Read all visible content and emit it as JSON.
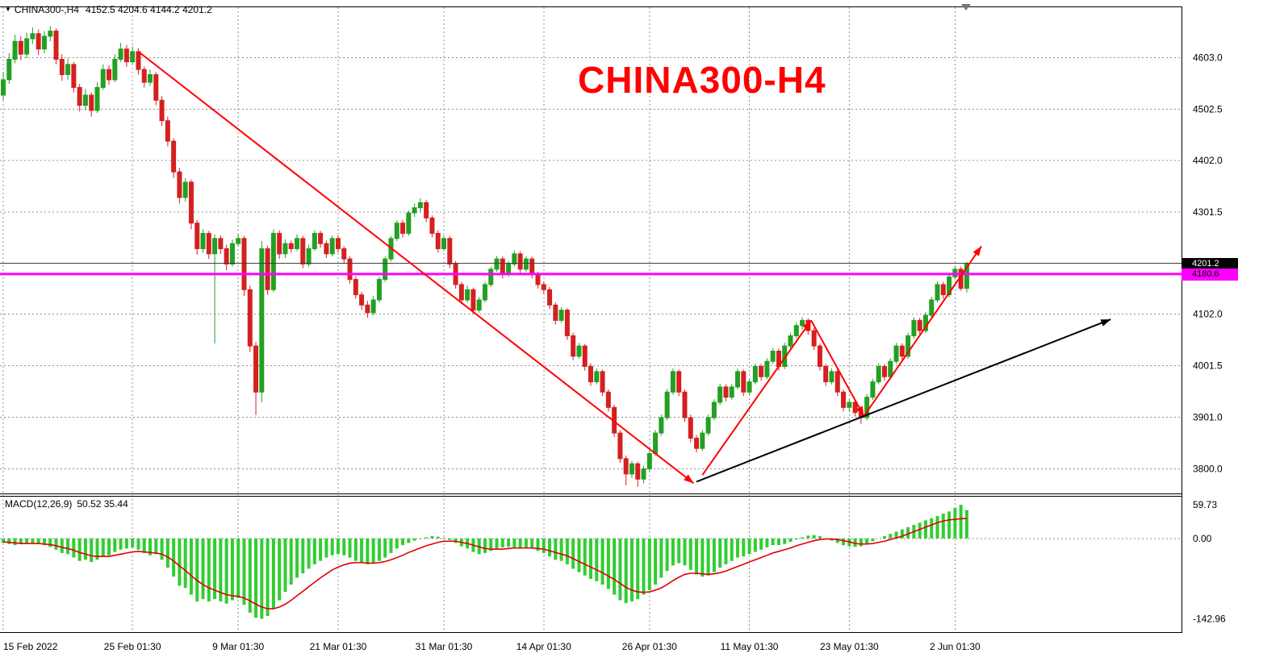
{
  "title_bar": {
    "symbol_period": "CHINA300-,H4",
    "ohlc": "4152.5 4204.6 4144.2 4201.2"
  },
  "watermark": "CHINA300-H4",
  "price_axis": {
    "ticks": [
      4603.0,
      4502.5,
      4402.0,
      4301.5,
      4102.0,
      4001.5,
      3901.0,
      3800.0
    ],
    "current_price": "4201.2",
    "current_price_value": 4201.2,
    "level_price": "4180.6",
    "level_price_value": 4180.6
  },
  "time_axis": {
    "labels": [
      {
        "text": "15 Feb 2022",
        "i": 0
      },
      {
        "text": "25 Feb 01:30",
        "i": 22
      },
      {
        "text": "9 Mar 01:30",
        "i": 40
      },
      {
        "text": "21 Mar 01:30",
        "i": 57
      },
      {
        "text": "31 Mar 01:30",
        "i": 75
      },
      {
        "text": "14 Apr 01:30",
        "i": 92
      },
      {
        "text": "26 Apr 01:30",
        "i": 110
      },
      {
        "text": "11 May 01:30",
        "i": 127
      },
      {
        "text": "23 May 01:30",
        "i": 144
      },
      {
        "text": "2 Jun 01:30",
        "i": 162
      }
    ]
  },
  "macd_panel": {
    "label": "MACD(12,26,9)",
    "values": "50.52 35.44",
    "axis_ticks": [
      59.73,
      0.0,
      -142.96
    ]
  },
  "chart_data": {
    "type": "candlestick",
    "title": "CHINA300-H4",
    "symbol": "CHINA300",
    "timeframe": "H4",
    "ylim": [
      3752,
      4700
    ],
    "macd_ylim": [
      -165.2,
      74.2
    ],
    "grid": true,
    "colors": {
      "up": "#22a022",
      "down": "#d42020",
      "macd_hist": "#32cd32",
      "macd_signal": "#e00000",
      "grid": "#909090",
      "level_magenta": "#ff00ff",
      "current_price_line": "#404040",
      "trend_red": "#ff0000",
      "trend_black": "#000000"
    },
    "candles": [
      [
        4530,
        4575,
        4520,
        4560
      ],
      [
        4560,
        4612,
        4552,
        4600
      ],
      [
        4600,
        4648,
        4592,
        4635
      ],
      [
        4635,
        4645,
        4598,
        4610
      ],
      [
        4610,
        4652,
        4602,
        4640
      ],
      [
        4640,
        4662,
        4630,
        4650
      ],
      [
        4650,
        4658,
        4608,
        4620
      ],
      [
        4620,
        4655,
        4612,
        4645
      ],
      [
        4645,
        4665,
        4635,
        4655
      ],
      [
        4655,
        4660,
        4590,
        4600
      ],
      [
        4600,
        4610,
        4558,
        4570
      ],
      [
        4570,
        4602,
        4560,
        4590
      ],
      [
        4590,
        4595,
        4535,
        4545
      ],
      [
        4545,
        4552,
        4498,
        4510
      ],
      [
        4510,
        4542,
        4500,
        4530
      ],
      [
        4530,
        4535,
        4488,
        4500
      ],
      [
        4500,
        4555,
        4495,
        4545
      ],
      [
        4545,
        4590,
        4540,
        4580
      ],
      [
        4580,
        4588,
        4550,
        4560
      ],
      [
        4560,
        4610,
        4555,
        4600
      ],
      [
        4600,
        4632,
        4595,
        4620
      ],
      [
        4620,
        4628,
        4585,
        4595
      ],
      [
        4595,
        4625,
        4590,
        4615
      ],
      [
        4615,
        4622,
        4570,
        4580
      ],
      [
        4580,
        4586,
        4545,
        4555
      ],
      [
        4555,
        4580,
        4548,
        4570
      ],
      [
        4570,
        4575,
        4510,
        4520
      ],
      [
        4520,
        4528,
        4470,
        4480
      ],
      [
        4480,
        4488,
        4430,
        4440
      ],
      [
        4440,
        4446,
        4368,
        4380
      ],
      [
        4380,
        4388,
        4318,
        4330
      ],
      [
        4330,
        4368,
        4322,
        4360
      ],
      [
        4360,
        4365,
        4268,
        4280
      ],
      [
        4280,
        4286,
        4218,
        4230
      ],
      [
        4230,
        4268,
        4222,
        4260
      ],
      [
        4260,
        4265,
        4210,
        4220
      ],
      [
        4220,
        4258,
        4045,
        4250
      ],
      [
        4250,
        4256,
        4220,
        4230
      ],
      [
        4230,
        4238,
        4188,
        4200
      ],
      [
        4200,
        4248,
        4195,
        4240
      ],
      [
        4240,
        4258,
        4235,
        4250
      ],
      [
        4250,
        4255,
        4138,
        4150
      ],
      [
        4150,
        4158,
        4028,
        4040
      ],
      [
        4040,
        4048,
        3905,
        3950
      ],
      [
        3950,
        4245,
        3930,
        4230
      ],
      [
        4230,
        4236,
        4140,
        4150
      ],
      [
        4150,
        4268,
        4145,
        4260
      ],
      [
        4260,
        4266,
        4210,
        4220
      ],
      [
        4220,
        4248,
        4212,
        4240
      ],
      [
        4240,
        4246,
        4222,
        4230
      ],
      [
        4230,
        4258,
        4225,
        4250
      ],
      [
        4250,
        4255,
        4192,
        4200
      ],
      [
        4200,
        4238,
        4195,
        4230
      ],
      [
        4230,
        4266,
        4226,
        4260
      ],
      [
        4260,
        4265,
        4232,
        4240
      ],
      [
        4240,
        4246,
        4212,
        4220
      ],
      [
        4220,
        4256,
        4215,
        4250
      ],
      [
        4250,
        4256,
        4222,
        4230
      ],
      [
        4230,
        4235,
        4200,
        4210
      ],
      [
        4210,
        4215,
        4162,
        4170
      ],
      [
        4170,
        4176,
        4132,
        4140
      ],
      [
        4140,
        4146,
        4110,
        4120
      ],
      [
        4120,
        4128,
        4095,
        4105
      ],
      [
        4105,
        4138,
        4100,
        4130
      ],
      [
        4130,
        4175,
        4125,
        4170
      ],
      [
        4170,
        4215,
        4165,
        4210
      ],
      [
        4210,
        4255,
        4205,
        4250
      ],
      [
        4250,
        4285,
        4245,
        4280
      ],
      [
        4280,
        4286,
        4252,
        4260
      ],
      [
        4260,
        4305,
        4255,
        4300
      ],
      [
        4300,
        4318,
        4292,
        4310
      ],
      [
        4310,
        4328,
        4302,
        4320
      ],
      [
        4320,
        4325,
        4282,
        4290
      ],
      [
        4290,
        4295,
        4252,
        4260
      ],
      [
        4260,
        4266,
        4222,
        4230
      ],
      [
        4230,
        4256,
        4225,
        4250
      ],
      [
        4250,
        4255,
        4192,
        4200
      ],
      [
        4200,
        4206,
        4152,
        4160
      ],
      [
        4160,
        4165,
        4122,
        4130
      ],
      [
        4130,
        4158,
        4125,
        4150
      ],
      [
        4150,
        4154,
        4102,
        4110
      ],
      [
        4110,
        4136,
        4105,
        4130
      ],
      [
        4130,
        4165,
        4125,
        4160
      ],
      [
        4160,
        4195,
        4155,
        4190
      ],
      [
        4190,
        4216,
        4185,
        4210
      ],
      [
        4210,
        4215,
        4172,
        4180
      ],
      [
        4180,
        4206,
        4175,
        4200
      ],
      [
        4200,
        4226,
        4195,
        4220
      ],
      [
        4220,
        4225,
        4182,
        4190
      ],
      [
        4190,
        4215,
        4185,
        4210
      ],
      [
        4210,
        4214,
        4172,
        4180
      ],
      [
        4180,
        4185,
        4152,
        4160
      ],
      [
        4160,
        4166,
        4142,
        4150
      ],
      [
        4150,
        4155,
        4112,
        4120
      ],
      [
        4120,
        4125,
        4082,
        4090
      ],
      [
        4090,
        4116,
        4085,
        4110
      ],
      [
        4110,
        4114,
        4052,
        4060
      ],
      [
        4060,
        4066,
        4012,
        4020
      ],
      [
        4020,
        4046,
        4015,
        4040
      ],
      [
        4040,
        4044,
        3992,
        4000
      ],
      [
        4000,
        4006,
        3962,
        3970
      ],
      [
        3970,
        3996,
        3965,
        3990
      ],
      [
        3990,
        3994,
        3942,
        3950
      ],
      [
        3950,
        3955,
        3912,
        3920
      ],
      [
        3920,
        3925,
        3862,
        3870
      ],
      [
        3870,
        3876,
        3812,
        3820
      ],
      [
        3820,
        3826,
        3768,
        3790
      ],
      [
        3790,
        3816,
        3782,
        3810
      ],
      [
        3810,
        3814,
        3765,
        3780
      ],
      [
        3780,
        3806,
        3772,
        3800
      ],
      [
        3800,
        3836,
        3795,
        3830
      ],
      [
        3830,
        3876,
        3825,
        3870
      ],
      [
        3870,
        3906,
        3865,
        3900
      ],
      [
        3900,
        3956,
        3895,
        3950
      ],
      [
        3950,
        3996,
        3945,
        3990
      ],
      [
        3990,
        3994,
        3942,
        3950
      ],
      [
        3950,
        3955,
        3892,
        3900
      ],
      [
        3900,
        3906,
        3852,
        3860
      ],
      [
        3860,
        3866,
        3832,
        3840
      ],
      [
        3840,
        3876,
        3835,
        3870
      ],
      [
        3870,
        3906,
        3865,
        3900
      ],
      [
        3900,
        3936,
        3895,
        3930
      ],
      [
        3930,
        3966,
        3925,
        3960
      ],
      [
        3960,
        3965,
        3932,
        3940
      ],
      [
        3940,
        3966,
        3935,
        3960
      ],
      [
        3960,
        3996,
        3955,
        3990
      ],
      [
        3990,
        3994,
        3942,
        3950
      ],
      [
        3950,
        3976,
        3945,
        3970
      ],
      [
        3970,
        4006,
        3965,
        4000
      ],
      [
        4000,
        4005,
        3972,
        3980
      ],
      [
        3980,
        4016,
        3975,
        4010
      ],
      [
        4010,
        4036,
        4005,
        4030
      ],
      [
        4030,
        4035,
        3992,
        4000
      ],
      [
        4000,
        4046,
        3995,
        4040
      ],
      [
        4040,
        4066,
        4035,
        4060
      ],
      [
        4060,
        4086,
        4055,
        4080
      ],
      [
        4080,
        4096,
        4072,
        4090
      ],
      [
        4090,
        4094,
        4062,
        4070
      ],
      [
        4070,
        4075,
        4032,
        4040
      ],
      [
        4040,
        4045,
        3992,
        4000
      ],
      [
        4000,
        4005,
        3962,
        3970
      ],
      [
        3970,
        3996,
        3965,
        3990
      ],
      [
        3990,
        3994,
        3942,
        3950
      ],
      [
        3950,
        3955,
        3912,
        3920
      ],
      [
        3920,
        3936,
        3912,
        3930
      ],
      [
        3930,
        3935,
        3902,
        3910
      ],
      [
        3910,
        3915,
        3888,
        3900
      ],
      [
        3900,
        3946,
        3895,
        3940
      ],
      [
        3940,
        3976,
        3935,
        3970
      ],
      [
        3970,
        4006,
        3965,
        4000
      ],
      [
        4000,
        4005,
        3972,
        3980
      ],
      [
        3980,
        4016,
        3975,
        4010
      ],
      [
        4010,
        4046,
        4005,
        4040
      ],
      [
        4040,
        4045,
        4012,
        4020
      ],
      [
        4020,
        4066,
        4015,
        4060
      ],
      [
        4060,
        4096,
        4055,
        4090
      ],
      [
        4090,
        4095,
        4062,
        4070
      ],
      [
        4070,
        4106,
        4065,
        4100
      ],
      [
        4100,
        4136,
        4095,
        4130
      ],
      [
        4130,
        4166,
        4125,
        4160
      ],
      [
        4160,
        4165,
        4132,
        4140
      ],
      [
        4140,
        4181,
        4135,
        4175
      ],
      [
        4175,
        4196,
        4170,
        4190
      ],
      [
        4190,
        4195,
        4148,
        4152.5
      ],
      [
        4152.5,
        4204.6,
        4144.2,
        4201.2
      ]
    ],
    "macd": {
      "histogram": [
        -8,
        -10,
        -12,
        -10,
        -9,
        -8,
        -10,
        -12,
        -15,
        -20,
        -26,
        -28,
        -34,
        -40,
        -38,
        -42,
        -38,
        -32,
        -30,
        -24,
        -20,
        -18,
        -16,
        -20,
        -26,
        -30,
        -28,
        -38,
        -52,
        -68,
        -84,
        -88,
        -100,
        -112,
        -108,
        -112,
        -108,
        -112,
        -116,
        -110,
        -106,
        -118,
        -132,
        -141,
        -142.96,
        -138,
        -126,
        -110,
        -95,
        -82,
        -70,
        -62,
        -54,
        -46,
        -40,
        -34,
        -30,
        -28,
        -30,
        -34,
        -40,
        -44,
        -46,
        -44,
        -40,
        -34,
        -26,
        -18,
        -12,
        -8,
        -4,
        -1,
        2,
        4,
        3,
        1,
        -3,
        -8,
        -14,
        -18,
        -24,
        -28,
        -26,
        -22,
        -18,
        -16,
        -15,
        -16,
        -18,
        -16,
        -18,
        -22,
        -26,
        -32,
        -38,
        -40,
        -46,
        -54,
        -60,
        -66,
        -72,
        -76,
        -82,
        -90,
        -100,
        -110,
        -115,
        -112,
        -108,
        -100,
        -92,
        -82,
        -70,
        -58,
        -48,
        -44,
        -48,
        -56,
        -64,
        -68,
        -66,
        -60,
        -52,
        -46,
        -40,
        -34,
        -32,
        -28,
        -24,
        -20,
        -16,
        -12,
        -12,
        -10,
        -6,
        -2,
        2,
        5,
        6,
        4,
        0,
        -4,
        -8,
        -12,
        -14,
        -15,
        -14,
        -10,
        -5,
        0,
        4,
        8,
        12,
        16,
        20,
        24,
        28,
        32,
        36,
        40,
        44,
        48,
        54,
        59.73,
        50.52
      ],
      "signal": [
        -6,
        -7,
        -8,
        -9,
        -9,
        -9,
        -9,
        -10,
        -11,
        -13,
        -16,
        -18,
        -21,
        -25,
        -28,
        -31,
        -32,
        -32,
        -32,
        -30,
        -28,
        -26,
        -24,
        -23,
        -24,
        -25,
        -26,
        -28,
        -33,
        -40,
        -49,
        -57,
        -66,
        -75,
        -82,
        -88,
        -92,
        -96,
        -100,
        -102,
        -103,
        -106,
        -111,
        -117,
        -122,
        -125,
        -125,
        -122,
        -117,
        -110,
        -102,
        -94,
        -86,
        -78,
        -70,
        -63,
        -56,
        -51,
        -47,
        -44,
        -43,
        -43,
        -44,
        -44,
        -43,
        -41,
        -38,
        -34,
        -30,
        -25,
        -21,
        -17,
        -13,
        -10,
        -7,
        -5,
        -5,
        -5,
        -7,
        -9,
        -12,
        -15,
        -18,
        -19,
        -19,
        -19,
        -18,
        -17,
        -17,
        -17,
        -17,
        -18,
        -19,
        -22,
        -25,
        -28,
        -31,
        -36,
        -41,
        -46,
        -51,
        -56,
        -61,
        -67,
        -73,
        -80,
        -87,
        -92,
        -95,
        -96,
        -95,
        -92,
        -88,
        -82,
        -75,
        -69,
        -64,
        -62,
        -62,
        -63,
        -64,
        -63,
        -61,
        -58,
        -54,
        -50,
        -46,
        -42,
        -38,
        -34,
        -30,
        -26,
        -23,
        -20,
        -17,
        -13,
        -10,
        -7,
        -4,
        -2,
        -1,
        -1,
        -2,
        -4,
        -6,
        -9,
        -10,
        -10,
        -9,
        -7,
        -5,
        -2,
        1,
        4,
        8,
        12,
        16,
        20,
        24,
        28,
        31,
        33,
        34,
        35,
        35.44
      ]
    },
    "annotations": {
      "arrows": [
        {
          "name": "downtrend-arrow",
          "color": "#ff0000",
          "width": 2,
          "points": [
            [
              23,
              4615
            ],
            [
              117.5,
              3772
            ]
          ]
        },
        {
          "name": "impulse-up-1",
          "color": "#ff0000",
          "width": 2,
          "points": [
            [
              119,
              3788
            ],
            [
              137.5,
              4090
            ]
          ]
        },
        {
          "name": "correction-down",
          "color": "#ff0000",
          "width": 2,
          "points": [
            [
              137.5,
              4090
            ],
            [
              146.5,
              3903
            ]
          ]
        },
        {
          "name": "impulse-up-2",
          "color": "#ff0000",
          "width": 2,
          "points": [
            [
              146.5,
              3903
            ],
            [
              166.5,
              4235
            ]
          ]
        },
        {
          "name": "uptrend-arrow",
          "color": "#000000",
          "width": 2,
          "points": [
            [
              118,
              3775
            ],
            [
              188.5,
              4092
            ]
          ]
        }
      ],
      "horizontal_level": 4180.6,
      "current_price_line": 4201.2
    }
  }
}
